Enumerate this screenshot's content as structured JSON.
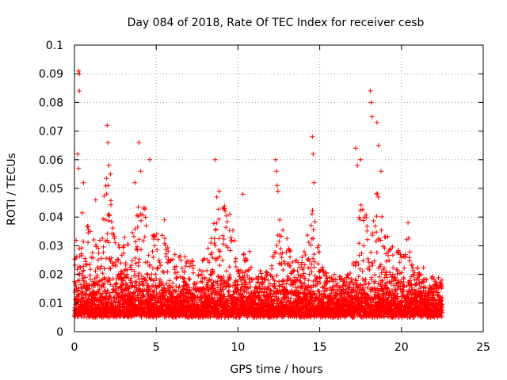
{
  "chart_data": {
    "type": "scatter",
    "title": "Day 084 of 2018, Rate Of TEC Index for receiver cesb",
    "xlabel": "GPS time / hours",
    "ylabel": "ROTI / TECUs",
    "xlim": [
      0,
      25
    ],
    "ylim": [
      0,
      0.1
    ],
    "xticks": [
      0,
      5,
      10,
      15,
      20,
      25
    ],
    "xtick_labels": [
      "0",
      "5",
      "10",
      "15",
      "20",
      "25"
    ],
    "yticks": [
      0,
      0.01,
      0.02,
      0.03,
      0.04,
      0.05,
      0.06,
      0.07,
      0.08,
      0.09,
      0.1
    ],
    "ytick_labels": [
      "0",
      "0.01",
      "0.02",
      "0.03",
      "0.04",
      "0.05",
      "0.06",
      "0.07",
      "0.08",
      "0.09",
      "0.1"
    ],
    "grid": true,
    "marker": "plus",
    "color": "#ff0000",
    "series": [
      {
        "name": "ROTI",
        "time_range_hours": [
          0,
          22.5
        ],
        "baseline_range": [
          0.005,
          0.02
        ],
        "sampled_points": [
          [
            0.25,
            0.091
          ],
          [
            0.3,
            0.09
          ],
          [
            0.3,
            0.084
          ],
          [
            0.2,
            0.062
          ],
          [
            0.25,
            0.057
          ],
          [
            0.55,
            0.052
          ],
          [
            1.3,
            0.046
          ],
          [
            2.0,
            0.072
          ],
          [
            2.05,
            0.066
          ],
          [
            2.1,
            0.058
          ],
          [
            2.2,
            0.055
          ],
          [
            3.7,
            0.052
          ],
          [
            3.95,
            0.066
          ],
          [
            4.05,
            0.056
          ],
          [
            4.6,
            0.06
          ],
          [
            5.5,
            0.039
          ],
          [
            8.6,
            0.06
          ],
          [
            8.7,
            0.047
          ],
          [
            8.85,
            0.049
          ],
          [
            9.5,
            0.041
          ],
          [
            10.3,
            0.048
          ],
          [
            12.3,
            0.06
          ],
          [
            12.35,
            0.056
          ],
          [
            12.4,
            0.051
          ],
          [
            12.45,
            0.049
          ],
          [
            14.55,
            0.068
          ],
          [
            14.6,
            0.062
          ],
          [
            14.65,
            0.052
          ],
          [
            17.2,
            0.064
          ],
          [
            17.3,
            0.058
          ],
          [
            17.5,
            0.06
          ],
          [
            18.1,
            0.084
          ],
          [
            18.15,
            0.08
          ],
          [
            18.2,
            0.075
          ],
          [
            18.5,
            0.073
          ],
          [
            18.6,
            0.065
          ],
          [
            18.75,
            0.056
          ],
          [
            20.4,
            0.038
          ]
        ],
        "envelope": [
          [
            0,
            0.032
          ],
          [
            0.5,
            0.042
          ],
          [
            1,
            0.036
          ],
          [
            1.5,
            0.033
          ],
          [
            2,
            0.056
          ],
          [
            2.5,
            0.034
          ],
          [
            3,
            0.034
          ],
          [
            3.5,
            0.033
          ],
          [
            4,
            0.053
          ],
          [
            4.5,
            0.04
          ],
          [
            5,
            0.034
          ],
          [
            5.5,
            0.036
          ],
          [
            6,
            0.028
          ],
          [
            6.5,
            0.027
          ],
          [
            7,
            0.026
          ],
          [
            7.5,
            0.024
          ],
          [
            8,
            0.026
          ],
          [
            8.5,
            0.038
          ],
          [
            9,
            0.046
          ],
          [
            9.5,
            0.04
          ],
          [
            10,
            0.029
          ],
          [
            10.5,
            0.03
          ],
          [
            11,
            0.026
          ],
          [
            11.5,
            0.024
          ],
          [
            12,
            0.026
          ],
          [
            12.5,
            0.04
          ],
          [
            13,
            0.033
          ],
          [
            13.5,
            0.028
          ],
          [
            14,
            0.026
          ],
          [
            14.5,
            0.045
          ],
          [
            15,
            0.03
          ],
          [
            15.5,
            0.021
          ],
          [
            16,
            0.02
          ],
          [
            16.5,
            0.018
          ],
          [
            17,
            0.023
          ],
          [
            17.5,
            0.048
          ],
          [
            18,
            0.038
          ],
          [
            18.5,
            0.05
          ],
          [
            19,
            0.036
          ],
          [
            19.5,
            0.029
          ],
          [
            20,
            0.028
          ],
          [
            20.5,
            0.035
          ],
          [
            21,
            0.024
          ],
          [
            21.5,
            0.022
          ],
          [
            22,
            0.021
          ],
          [
            22.5,
            0.02
          ]
        ]
      }
    ]
  }
}
